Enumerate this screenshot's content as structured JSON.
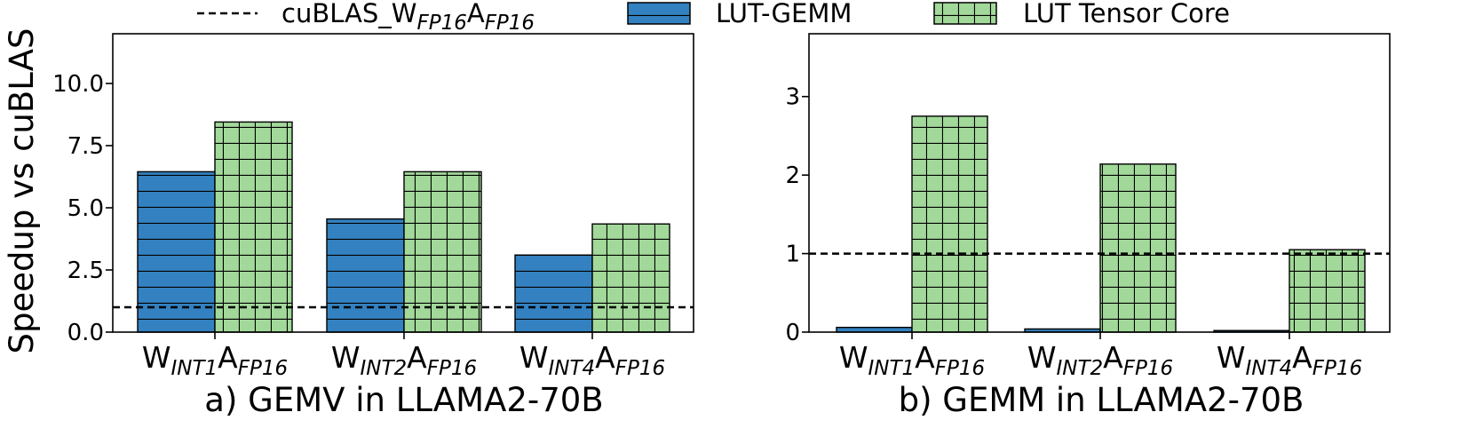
{
  "legend": {
    "baseline": {
      "main": "cuBLAS_W",
      "sub1": "FP16",
      "mid": "A",
      "sub2": "FP16"
    },
    "lut_gemm": "LUT-GEMM",
    "lut_tc": "LUT Tensor Core"
  },
  "colors": {
    "lut_gemm": "#3381c0",
    "lut_tc": "#a2d99a",
    "edge": "#000000"
  },
  "chart_data": [
    {
      "type": "bar",
      "caption": "a) GEMV in LLAMA2-70B",
      "ylabel": "Speedup vs cuBLAS",
      "xlabel": "",
      "ylim": [
        0,
        12
      ],
      "yticks": [
        "0.0",
        "2.5",
        "5.0",
        "7.5",
        "10.0"
      ],
      "categories": [
        {
          "w": "W",
          "wsub": "INT1",
          "a": "A",
          "asub": "FP16"
        },
        {
          "w": "W",
          "wsub": "INT2",
          "a": "A",
          "asub": "FP16"
        },
        {
          "w": "W",
          "wsub": "INT4",
          "a": "A",
          "asub": "FP16"
        }
      ],
      "series": [
        {
          "name": "LUT-GEMM",
          "values": [
            6.45,
            4.55,
            3.1
          ]
        },
        {
          "name": "LUT Tensor Core",
          "values": [
            8.45,
            6.45,
            4.35
          ]
        }
      ],
      "baseline": {
        "name": "cuBLAS_WFP16AFP16",
        "value": 1.0,
        "style": "dashed"
      },
      "grid": false,
      "legend_position": "top"
    },
    {
      "type": "bar",
      "caption": "b) GEMM in LLAMA2-70B",
      "ylabel": "",
      "xlabel": "",
      "ylim": [
        0,
        3.8
      ],
      "yticks": [
        "0",
        "1",
        "2",
        "3"
      ],
      "categories": [
        {
          "w": "W",
          "wsub": "INT1",
          "a": "A",
          "asub": "FP16"
        },
        {
          "w": "W",
          "wsub": "INT2",
          "a": "A",
          "asub": "FP16"
        },
        {
          "w": "W",
          "wsub": "INT4",
          "a": "A",
          "asub": "FP16"
        }
      ],
      "series": [
        {
          "name": "LUT-GEMM",
          "values": [
            0.06,
            0.04,
            0.02
          ]
        },
        {
          "name": "LUT Tensor Core",
          "values": [
            2.75,
            2.14,
            1.05
          ]
        }
      ],
      "baseline": {
        "name": "cuBLAS_WFP16AFP16",
        "value": 1.0,
        "style": "dashed"
      },
      "grid": false,
      "legend_position": "top"
    }
  ]
}
